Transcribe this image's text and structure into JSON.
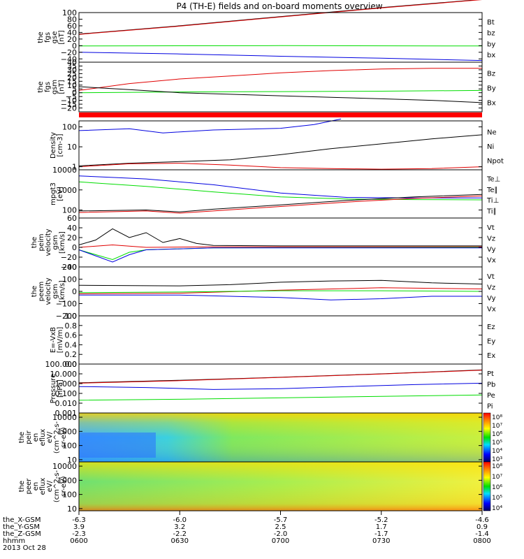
{
  "title": "P4 (TH-E) fields and on-board moments overview",
  "colors": {
    "black": "#000000",
    "red": "#e00000",
    "green": "#00dd00",
    "blue": "#0000e0"
  },
  "chart_data": {
    "type": "line",
    "title": "P4 (TH-E) fields and on-board moments overview",
    "date_label": "2013 Oct 28",
    "x_time": {
      "labels": [
        "0600",
        "0630",
        "0700",
        "0730",
        "0800"
      ],
      "minutes": [
        0,
        30,
        60,
        90,
        120
      ],
      "range": [
        "0600",
        "0800"
      ]
    },
    "ephemeris": [
      {
        "label": "the_X-GSM",
        "values": [
          "-6.3",
          "-6.0",
          "-5.7",
          "-5.2",
          "-4.6"
        ]
      },
      {
        "label": "the_Y-GSM",
        "values": [
          "3.9",
          "3.2",
          "2.5",
          "1.7",
          "0.9"
        ]
      },
      {
        "label": "the_Z-GSM",
        "values": [
          "-2.3",
          "-2.2",
          "-2.0",
          "-1.7",
          "-1.4"
        ]
      },
      {
        "label": "hhmm",
        "values": [
          "0600",
          "0630",
          "0700",
          "0730",
          "0800"
        ]
      }
    ],
    "panels": [
      {
        "id": "fgs-gse",
        "ylabel": [
          "the",
          "fgs",
          "gse",
          "[nT]"
        ],
        "y_range": [
          -50,
          100
        ],
        "y_ticks": [
          "100",
          "80",
          "60",
          "40",
          "20",
          "0",
          "−20",
          "−40"
        ],
        "y_tick_values": [
          100,
          80,
          60,
          40,
          20,
          0,
          -20,
          -40
        ],
        "legend": [
          {
            "text": "Bt",
            "color": "black"
          },
          {
            "text": "bz",
            "color": "red"
          },
          {
            "text": "by",
            "color": "green"
          },
          {
            "text": "bx",
            "color": "blue"
          }
        ],
        "series": [
          {
            "color": "black",
            "t": [
              0,
              30,
              60,
              90,
              120
            ],
            "v": [
              35,
              60,
              88,
              115,
              140
            ]
          },
          {
            "color": "red",
            "t": [
              0,
              30,
              60,
              90,
              120
            ],
            "v": [
              34,
              59,
              87,
              114,
              139
            ]
          },
          {
            "color": "green",
            "t": [
              0,
              60,
              120
            ],
            "v": [
              -1,
              0,
              -1
            ]
          },
          {
            "color": "blue",
            "t": [
              0,
              30,
              60,
              90,
              120
            ],
            "v": [
              -20,
              -25,
              -32,
              -38,
              -45
            ]
          }
        ]
      },
      {
        "id": "fgs-gsm",
        "ylabel": [
          "the",
          "fgs",
          "gsm",
          "[nT]"
        ],
        "y_range": [
          -25,
          40
        ],
        "y_ticks": [
          "40",
          "35",
          "30",
          "25",
          "20",
          "15",
          "10",
          "5",
          "0",
          "−5",
          "−10",
          "−15",
          "−20"
        ],
        "y_tick_values": [
          40,
          35,
          30,
          25,
          20,
          15,
          10,
          5,
          0,
          -5,
          -10,
          -15,
          -20
        ],
        "legend": [
          {
            "text": "Bz",
            "color": "red"
          },
          {
            "text": "By",
            "color": "green"
          },
          {
            "text": "Bx",
            "color": "black"
          }
        ],
        "series": [
          {
            "color": "red",
            "t": [
              0,
              15,
              30,
              45,
              60,
              75,
              90,
              105,
              120
            ],
            "v": [
              3,
              12,
              18,
              22,
              26,
              29,
              31,
              32,
              32
            ]
          },
          {
            "color": "green",
            "t": [
              0,
              30,
              60,
              90,
              120
            ],
            "v": [
              0,
              1,
              1.5,
              2,
              3
            ]
          },
          {
            "color": "black",
            "t": [
              0,
              15,
              30,
              45,
              60,
              75,
              90,
              105,
              120
            ],
            "v": [
              8,
              4,
              0,
              -2,
              -4,
              -6,
              -8,
              -10,
              -13
            ]
          }
        ]
      },
      {
        "id": "density",
        "ylabel": [
          "Density",
          "[cm-3]"
        ],
        "y_log": true,
        "y_range": [
          0.7,
          200
        ],
        "y_ticks": [
          "100",
          "10",
          "1"
        ],
        "y_tick_values": [
          100,
          10,
          1
        ],
        "legend": [
          {
            "text": "Ne",
            "color": "red"
          },
          {
            "text": "Ni",
            "color": "black"
          },
          {
            "text": "Npot",
            "color": "blue"
          }
        ],
        "series": [
          {
            "color": "blue",
            "t": [
              0,
              15,
              25,
              40,
              60,
              70,
              78
            ],
            "v": [
              65,
              80,
              50,
              70,
              85,
              130,
              250
            ]
          },
          {
            "color": "black",
            "t": [
              0,
              15,
              30,
              45,
              60,
              75,
              90,
              105,
              120
            ],
            "v": [
              1.1,
              1.5,
              1.8,
              2.2,
              4,
              8,
              14,
              25,
              40
            ]
          },
          {
            "color": "red",
            "t": [
              0,
              15,
              30,
              45,
              60,
              75,
              90,
              105,
              120
            ],
            "v": [
              1.0,
              1.4,
              1.5,
              1.2,
              0.9,
              0.8,
              0.75,
              0.8,
              1.0
            ]
          }
        ]
      },
      {
        "id": "temperature",
        "ylabel": [
          "mpgt3",
          "[eV]"
        ],
        "y_log": true,
        "y_range": [
          40,
          10000
        ],
        "y_ticks": [
          "10000",
          "1000",
          "100"
        ],
        "y_tick_values": [
          10000,
          1000,
          100
        ],
        "legend": [
          {
            "text": "Te⊥",
            "color": "red"
          },
          {
            "text": "Te∥",
            "color": "black"
          },
          {
            "text": "Ti⊥",
            "color": "blue"
          },
          {
            "text": "Ti∥",
            "color": "green"
          }
        ],
        "series": [
          {
            "color": "blue",
            "t": [
              0,
              20,
              40,
              60,
              80,
              100,
              120
            ],
            "v": [
              5000,
              3500,
              1800,
              700,
              420,
              400,
              400
            ]
          },
          {
            "color": "green",
            "t": [
              0,
              20,
              40,
              60,
              80,
              100,
              120
            ],
            "v": [
              2500,
              1500,
              800,
              450,
              350,
              330,
              320
            ]
          },
          {
            "color": "black",
            "t": [
              0,
              20,
              30,
              40,
              60,
              80,
              100,
              120
            ],
            "v": [
              90,
              100,
              80,
              110,
              180,
              300,
              450,
              600
            ]
          },
          {
            "color": "red",
            "t": [
              0,
              20,
              30,
              40,
              60,
              80,
              100,
              120
            ],
            "v": [
              75,
              90,
              70,
              90,
              150,
              250,
              380,
              500
            ]
          }
        ]
      },
      {
        "id": "peim-velocity",
        "ylabel": [
          "the",
          "peim",
          "velocity",
          "gsm",
          "[km/s]"
        ],
        "y_range": [
          -40,
          60
        ],
        "y_ticks": [
          "60",
          "40",
          "20",
          "0",
          "−20",
          "−40"
        ],
        "y_tick_values": [
          60,
          40,
          20,
          0,
          -20,
          -40
        ],
        "legend": [
          {
            "text": "Vt",
            "color": "black"
          },
          {
            "text": "Vz",
            "color": "red"
          },
          {
            "text": "Vy",
            "color": "green"
          },
          {
            "text": "Vx",
            "color": "blue"
          }
        ],
        "series": [
          {
            "color": "black",
            "t": [
              0,
              5,
              10,
              15,
              20,
              25,
              30,
              35,
              40,
              60,
              120
            ],
            "v": [
              5,
              15,
              38,
              20,
              30,
              10,
              18,
              8,
              4,
              3,
              3
            ]
          },
          {
            "color": "red",
            "t": [
              0,
              10,
              20,
              40,
              120
            ],
            "v": [
              0,
              5,
              0,
              1,
              1
            ]
          },
          {
            "color": "green",
            "t": [
              0,
              10,
              15,
              20,
              40,
              120
            ],
            "v": [
              -5,
              -25,
              -10,
              -5,
              -1,
              0
            ]
          },
          {
            "color": "blue",
            "t": [
              0,
              10,
              15,
              20,
              40,
              120
            ],
            "v": [
              -5,
              -30,
              -15,
              -5,
              -1,
              -1
            ]
          }
        ]
      },
      {
        "id": "peem-velocity",
        "ylabel": [
          "the",
          "peem",
          "velocity",
          "gsm",
          "[km/s]"
        ],
        "y_range": [
          -200,
          200
        ],
        "y_ticks": [
          "200",
          "100",
          "0",
          "−100",
          "−200"
        ],
        "y_tick_values": [
          200,
          100,
          0,
          -100,
          -200
        ],
        "legend": [
          {
            "text": "Vt",
            "color": "black"
          },
          {
            "text": "Vz",
            "color": "red"
          },
          {
            "text": "Vy",
            "color": "green"
          },
          {
            "text": "Vx",
            "color": "blue"
          }
        ],
        "series": [
          {
            "color": "black",
            "t": [
              0,
              30,
              45,
              60,
              75,
              90,
              105,
              120
            ],
            "v": [
              50,
              45,
              55,
              75,
              85,
              90,
              70,
              60
            ]
          },
          {
            "color": "red",
            "t": [
              0,
              30,
              60,
              90,
              120
            ],
            "v": [
              -20,
              -15,
              10,
              30,
              20
            ]
          },
          {
            "color": "green",
            "t": [
              0,
              30,
              60,
              90,
              120
            ],
            "v": [
              -10,
              -5,
              5,
              5,
              0
            ]
          },
          {
            "color": "blue",
            "t": [
              0,
              30,
              45,
              60,
              75,
              90,
              105,
              120
            ],
            "v": [
              -30,
              -30,
              -40,
              -50,
              -70,
              -60,
              -40,
              -40
            ]
          }
        ]
      },
      {
        "id": "efield",
        "ylabel": [
          "E=-VxB",
          "[mV/m]"
        ],
        "y_range": [
          0,
          1
        ],
        "y_ticks": [
          "1.0",
          "0.8",
          "0.6",
          "0.4",
          "0.2",
          "0.0"
        ],
        "y_tick_values": [
          1,
          0.8,
          0.6,
          0.4,
          0.2,
          0
        ],
        "legend": [
          {
            "text": "Ez",
            "color": "red"
          },
          {
            "text": "Ey",
            "color": "green"
          },
          {
            "text": "Ex",
            "color": "blue"
          }
        ],
        "series": []
      },
      {
        "id": "pressure",
        "ylabel": [
          "Pressure",
          "[nPa]"
        ],
        "y_log": true,
        "y_range": [
          0.001,
          100
        ],
        "y_ticks": [
          "100.000",
          "10.000",
          "1.000",
          "0.100",
          "0.010",
          "0.001"
        ],
        "y_tick_values": [
          100,
          10,
          1,
          0.1,
          0.01,
          0.001
        ],
        "legend": [
          {
            "text": "Pt",
            "color": "black"
          },
          {
            "text": "Pb",
            "color": "red"
          },
          {
            "text": "Pe",
            "color": "green"
          },
          {
            "text": "Pi",
            "color": "blue"
          }
        ],
        "series": [
          {
            "color": "black",
            "t": [
              0,
              30,
              60,
              90,
              120
            ],
            "v": [
              1.2,
              2.2,
              4.5,
              10,
              25
            ]
          },
          {
            "color": "red",
            "t": [
              0,
              30,
              60,
              90,
              120
            ],
            "v": [
              1.1,
              2.0,
              4.3,
              9.5,
              24
            ]
          },
          {
            "color": "blue",
            "t": [
              0,
              20,
              40,
              60,
              80,
              100,
              120
            ],
            "v": [
              0.5,
              0.4,
              0.25,
              0.3,
              0.5,
              0.8,
              1.1
            ]
          },
          {
            "color": "green",
            "t": [
              0,
              30,
              60,
              90,
              120
            ],
            "v": [
              0.02,
              0.025,
              0.035,
              0.05,
              0.07
            ]
          }
        ]
      },
      {
        "id": "peir-spectrogram",
        "type": "heatmap",
        "ylabel": [
          "the",
          "peir",
          "en",
          "eflux",
          "eV/",
          "(cm^2-s-",
          "sr-eV)"
        ],
        "y_log": true,
        "y_range": [
          7,
          20000
        ],
        "y_ticks": [
          "10000",
          "1000",
          "100",
          "10"
        ],
        "y_tick_values": [
          10000,
          1000,
          100,
          10
        ],
        "colorbar_ticks": [
          "10⁸",
          "10⁷",
          "10⁶",
          "10⁵",
          "10⁴",
          "10³"
        ]
      },
      {
        "id": "peer-spectrogram",
        "type": "heatmap",
        "ylabel": [
          "the",
          "peer",
          "en",
          "eflux",
          "eV/",
          "(cm^2-s-",
          "sr-eV)"
        ],
        "y_log": true,
        "y_range": [
          7,
          20000
        ],
        "y_ticks": [
          "10000",
          "1000",
          "100",
          "10"
        ],
        "y_tick_values": [
          10000,
          1000,
          100,
          10
        ],
        "colorbar_ticks": [
          "10⁸",
          "10⁷",
          "10⁶",
          "10⁵",
          "10⁴"
        ]
      }
    ]
  }
}
